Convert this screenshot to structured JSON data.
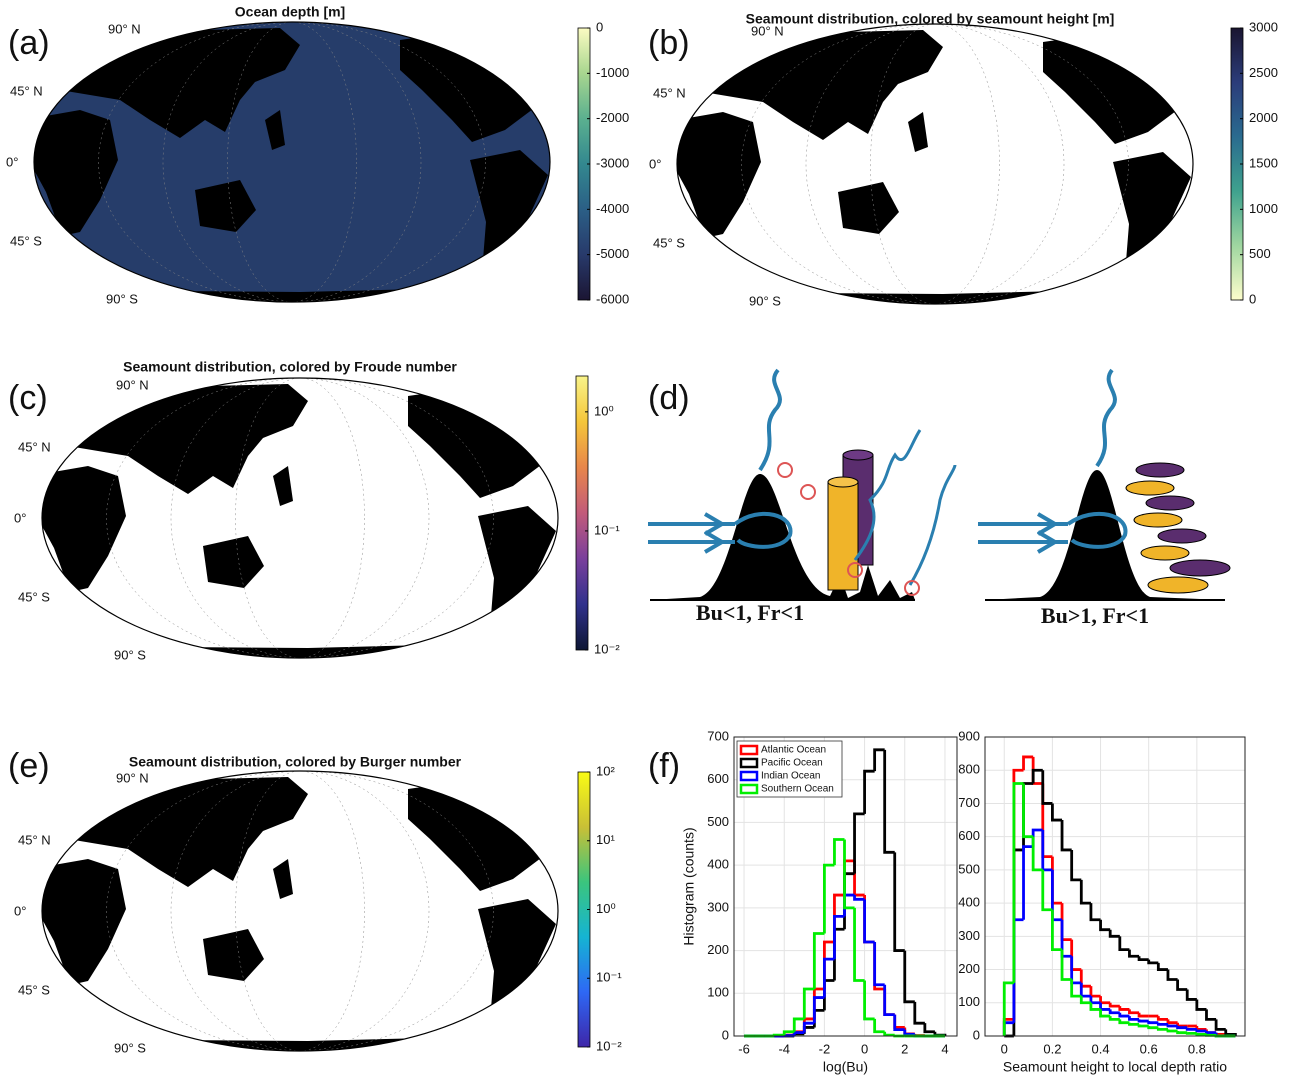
{
  "chart_data": [
    {
      "type": "map",
      "panel": "(a)",
      "title": "Ocean depth [m]",
      "lat_labels": [
        "90° N",
        "45° N",
        "0°",
        "45° S",
        "90° S"
      ],
      "clim": [
        -6000,
        0
      ],
      "cticks": [
        0,
        -1000,
        -2000,
        -3000,
        -4000,
        -5000,
        -6000
      ],
      "colormap": [
        "#1b1533",
        "#283a6b",
        "#2b5f86",
        "#33888f",
        "#5bb08f",
        "#a8d68f",
        "#fbfbc2"
      ],
      "ocean_color": "#263d6a"
    },
    {
      "type": "map",
      "panel": "(b)",
      "title": "Seamount distribution, colored by seamount height [m]",
      "lat_labels": [
        "90° N",
        "45° N",
        "0°",
        "45° S",
        "90° S"
      ],
      "clim": [
        0,
        3000
      ],
      "cticks": [
        3000,
        2500,
        2000,
        1500,
        1000,
        500,
        0
      ],
      "colormap": [
        "#fdfdcc",
        "#9fd6a0",
        "#3fa28e",
        "#2a6b8f",
        "#2b3c7a",
        "#1a1530"
      ],
      "ocean_color": "#ffffff"
    },
    {
      "type": "map",
      "panel": "(c)",
      "title": "Seamount distribution, colored by Froude number",
      "lat_labels": [
        "90° N",
        "45° N",
        "0°",
        "45° S",
        "90° S"
      ],
      "clim": [
        0.01,
        2
      ],
      "log": true,
      "cticks": [
        {
          "value": 1,
          "label": "10⁰"
        },
        {
          "value": 0.1,
          "label": "10⁻¹"
        },
        {
          "value": 0.01,
          "label": "10⁻²"
        }
      ],
      "colormap": [
        "#0d1634",
        "#30318c",
        "#7a3f9c",
        "#c25b7a",
        "#e8864a",
        "#f5c63a",
        "#f9f48a"
      ],
      "ocean_color": "#ffffff"
    },
    {
      "type": "diagram",
      "panel": "(d)",
      "labels": [
        "Bu<1, Fr<1",
        "Bu>1, Fr<1"
      ]
    },
    {
      "type": "map",
      "panel": "(e)",
      "title": "Seamount distribution, colored by Burger number",
      "lat_labels": [
        "90° N",
        "45° N",
        "0°",
        "45° S",
        "90° S"
      ],
      "clim": [
        0.01,
        100
      ],
      "log": true,
      "cticks": [
        {
          "value": 100,
          "label": "10²"
        },
        {
          "value": 10,
          "label": "10¹"
        },
        {
          "value": 1,
          "label": "10⁰"
        },
        {
          "value": 0.1,
          "label": "10⁻¹"
        },
        {
          "value": 0.01,
          "label": "10⁻²"
        }
      ],
      "colormap": [
        "#3e26a8",
        "#2e68f5",
        "#15b4d3",
        "#3bc57d",
        "#c9c036",
        "#f9fb15"
      ],
      "ocean_color": "#ffffff"
    },
    {
      "type": "histogram",
      "panel": "(f)",
      "xlabel": "log(Bu)",
      "ylabel": "Histogram (counts)",
      "xlim": [
        -6.5,
        4.6
      ],
      "ylim": [
        0,
        700
      ],
      "xticks": [
        -6,
        -4,
        -2,
        0,
        2,
        4
      ],
      "yticks": [
        0,
        100,
        200,
        300,
        400,
        500,
        600,
        700
      ],
      "grid": true,
      "legend": "upper left",
      "bins": [
        -6,
        -5.5,
        -5,
        -4.5,
        -4,
        -3.5,
        -3,
        -2.5,
        -2,
        -1.5,
        -1,
        -0.5,
        0,
        0.5,
        1,
        1.5,
        2,
        2.5,
        3,
        3.5,
        4
      ],
      "series": [
        {
          "name": "Atlantic Ocean",
          "color": "#ff0000",
          "values": [
            0,
            0,
            0,
            0,
            2,
            10,
            40,
            110,
            220,
            330,
            410,
            330,
            220,
            110,
            50,
            20,
            5,
            1,
            0,
            0
          ]
        },
        {
          "name": "Pacific Ocean",
          "color": "#000000",
          "values": [
            0,
            0,
            0,
            0,
            0,
            5,
            20,
            60,
            130,
            250,
            380,
            520,
            620,
            670,
            430,
            200,
            80,
            30,
            10,
            2
          ]
        },
        {
          "name": "Indian Ocean",
          "color": "#0000ff",
          "values": [
            0,
            0,
            0,
            0,
            1,
            8,
            30,
            90,
            180,
            280,
            330,
            320,
            220,
            120,
            50,
            15,
            4,
            0,
            0,
            0
          ]
        },
        {
          "name": "Southern Ocean",
          "color": "#00ee00",
          "values": [
            0,
            0,
            0,
            2,
            10,
            40,
            110,
            240,
            400,
            460,
            300,
            130,
            40,
            10,
            2,
            0,
            0,
            0,
            0,
            0
          ]
        }
      ]
    },
    {
      "type": "histogram",
      "xlabel": "Seamount height to local depth ratio",
      "xlim": [
        -0.08,
        1.0
      ],
      "ylim": [
        0,
        900
      ],
      "xticks": [
        0,
        0.2,
        0.4,
        0.6,
        0.8
      ],
      "yticks": [
        0,
        100,
        200,
        300,
        400,
        500,
        600,
        700,
        800,
        900
      ],
      "grid": true,
      "bins": [
        0,
        0.04,
        0.08,
        0.12,
        0.16,
        0.2,
        0.24,
        0.28,
        0.32,
        0.36,
        0.4,
        0.44,
        0.48,
        0.52,
        0.56,
        0.6,
        0.64,
        0.68,
        0.72,
        0.76,
        0.8,
        0.84,
        0.88,
        0.92,
        0.96
      ],
      "series": [
        {
          "color": "#ff0000",
          "values": [
            50,
            800,
            840,
            760,
            540,
            400,
            290,
            200,
            150,
            120,
            100,
            90,
            80,
            70,
            60,
            60,
            50,
            40,
            30,
            30,
            20,
            10,
            5,
            0
          ]
        },
        {
          "color": "#000000",
          "values": [
            0,
            560,
            760,
            800,
            700,
            650,
            560,
            470,
            400,
            350,
            320,
            300,
            260,
            240,
            230,
            220,
            200,
            170,
            140,
            110,
            80,
            50,
            20,
            5
          ]
        },
        {
          "color": "#0000ff",
          "values": [
            40,
            350,
            570,
            620,
            500,
            350,
            240,
            160,
            120,
            100,
            80,
            70,
            60,
            50,
            45,
            40,
            35,
            30,
            25,
            20,
            15,
            10,
            0,
            0
          ]
        },
        {
          "color": "#00ee00",
          "values": [
            160,
            760,
            600,
            500,
            380,
            260,
            170,
            120,
            100,
            80,
            60,
            50,
            40,
            35,
            30,
            25,
            20,
            15,
            10,
            8,
            5,
            2,
            0,
            0
          ]
        }
      ]
    }
  ]
}
